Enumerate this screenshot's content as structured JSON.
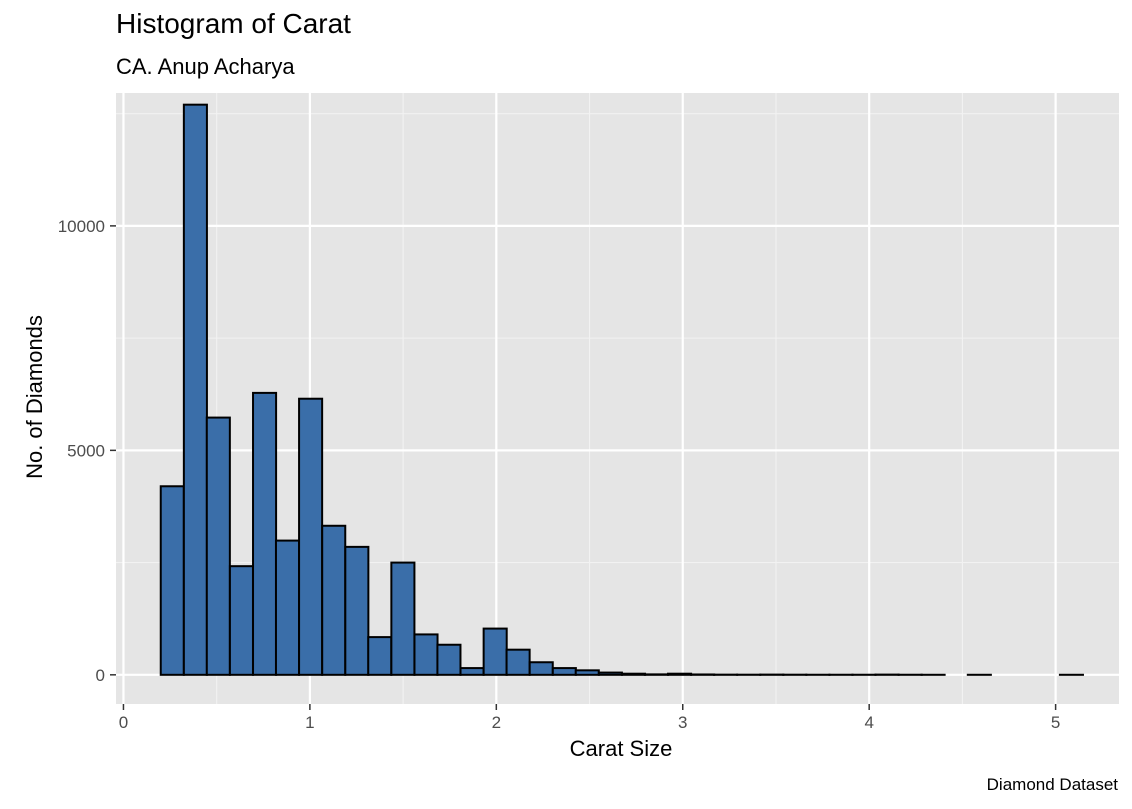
{
  "chart_data": {
    "type": "bar",
    "title": "Histogram of Carat",
    "subtitle": "CA. Anup Acharya",
    "caption": "Diamond Dataset",
    "xlabel": "Carat Size",
    "ylabel": "No. of Diamonds",
    "xlim": [
      -0.04,
      5.34
    ],
    "ylim": [
      -650,
      12960
    ],
    "x_ticks": [
      0,
      1,
      2,
      3,
      4,
      5
    ],
    "y_ticks": [
      0,
      5000,
      10000
    ],
    "grid": true,
    "bin_width": 0.1237,
    "bins": [
      {
        "x0": 0.2,
        "count": 4200
      },
      {
        "x0": 0.324,
        "count": 12700
      },
      {
        "x0": 0.447,
        "count": 5730
      },
      {
        "x0": 0.571,
        "count": 2420
      },
      {
        "x0": 0.695,
        "count": 6280
      },
      {
        "x0": 0.818,
        "count": 2990
      },
      {
        "x0": 0.942,
        "count": 6150
      },
      {
        "x0": 1.066,
        "count": 3320
      },
      {
        "x0": 1.19,
        "count": 2850
      },
      {
        "x0": 1.313,
        "count": 840
      },
      {
        "x0": 1.437,
        "count": 2500
      },
      {
        "x0": 1.561,
        "count": 900
      },
      {
        "x0": 1.684,
        "count": 670
      },
      {
        "x0": 1.808,
        "count": 150
      },
      {
        "x0": 1.932,
        "count": 1030
      },
      {
        "x0": 2.055,
        "count": 560
      },
      {
        "x0": 2.179,
        "count": 280
      },
      {
        "x0": 2.303,
        "count": 150
      },
      {
        "x0": 2.426,
        "count": 100
      },
      {
        "x0": 2.55,
        "count": 50
      },
      {
        "x0": 2.674,
        "count": 25
      },
      {
        "x0": 2.797,
        "count": 10
      },
      {
        "x0": 2.921,
        "count": 25
      },
      {
        "x0": 3.045,
        "count": 8
      },
      {
        "x0": 3.168,
        "count": 4
      },
      {
        "x0": 3.292,
        "count": 3
      },
      {
        "x0": 3.416,
        "count": 5
      },
      {
        "x0": 3.539,
        "count": 3
      },
      {
        "x0": 3.663,
        "count": 2
      },
      {
        "x0": 3.787,
        "count": 2
      },
      {
        "x0": 3.91,
        "count": 2
      },
      {
        "x0": 4.034,
        "count": 5
      },
      {
        "x0": 4.158,
        "count": 2
      },
      {
        "x0": 4.281,
        "count": 1
      },
      {
        "x0": 4.405,
        "count": 0
      },
      {
        "x0": 4.529,
        "count": 1
      },
      {
        "x0": 4.652,
        "count": 0
      },
      {
        "x0": 4.776,
        "count": 0
      },
      {
        "x0": 4.9,
        "count": 0
      },
      {
        "x0": 5.023,
        "count": 1
      }
    ],
    "colors": {
      "bar_fill": "#3A6EA9",
      "bar_stroke": "#000000",
      "panel_bg": "#E5E5E5",
      "grid_major": "#FFFFFF",
      "grid_minor": "#F2F2F2",
      "tick_text": "#4D4D4D",
      "tick_mark": "#333333"
    }
  }
}
